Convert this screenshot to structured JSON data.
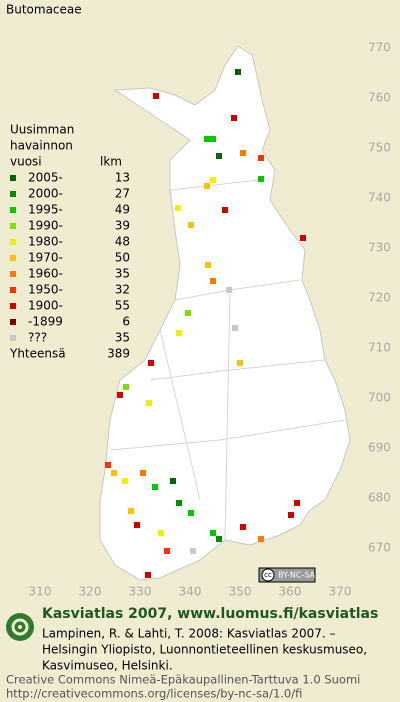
{
  "title": "Butomaceae",
  "legend": {
    "heading": [
      "Uusimman",
      "havainnon",
      "vuosi"
    ],
    "count_heading": "lkm",
    "rows": [
      {
        "label": "2005-",
        "count": 13,
        "color": "#006400"
      },
      {
        "label": "2000-",
        "count": 27,
        "color": "#008c00"
      },
      {
        "label": "1995-",
        "count": 49,
        "color": "#00c800"
      },
      {
        "label": "1990-",
        "count": 39,
        "color": "#7ee000"
      },
      {
        "label": "1980-",
        "count": 48,
        "color": "#f0f000"
      },
      {
        "label": "1970-",
        "count": 50,
        "color": "#ffc000"
      },
      {
        "label": "1960-",
        "count": 35,
        "color": "#ff7800"
      },
      {
        "label": "1950-",
        "count": 32,
        "color": "#ff3000"
      },
      {
        "label": "1900-",
        "count": 55,
        "color": "#d00000"
      },
      {
        "label": "-1899",
        "count": 6,
        "color": "#800000"
      },
      {
        "label": "???",
        "count": 35,
        "color": "#c8c8c8"
      }
    ],
    "total_label": "Yhteensä",
    "total": 389
  },
  "grid": {
    "y_labels": [
      770,
      760,
      750,
      740,
      730,
      720,
      710,
      700,
      690,
      680,
      670
    ],
    "x_labels": [
      310,
      320,
      330,
      340,
      350,
      360,
      370
    ]
  },
  "footer": {
    "badge": "BY-NC-SA",
    "site": "Kasviatlas 2007, www.luomus.fi/kasviatlas",
    "citation": [
      "Lampinen, R. & Lahti, T. 2008: Kasviatlas 2007. –",
      "Helsingin Yliopisto, Luonnontieteellinen keskusmuseo,",
      "Kasvimuseo, Helsinki."
    ],
    "license": [
      "Creative Commons Nimeä-Epäkaupallinen-Tarttuva 1.0 Suomi",
      "http://creativecommons.org/licenses/by-nc-sa/1.0/fi"
    ]
  }
}
